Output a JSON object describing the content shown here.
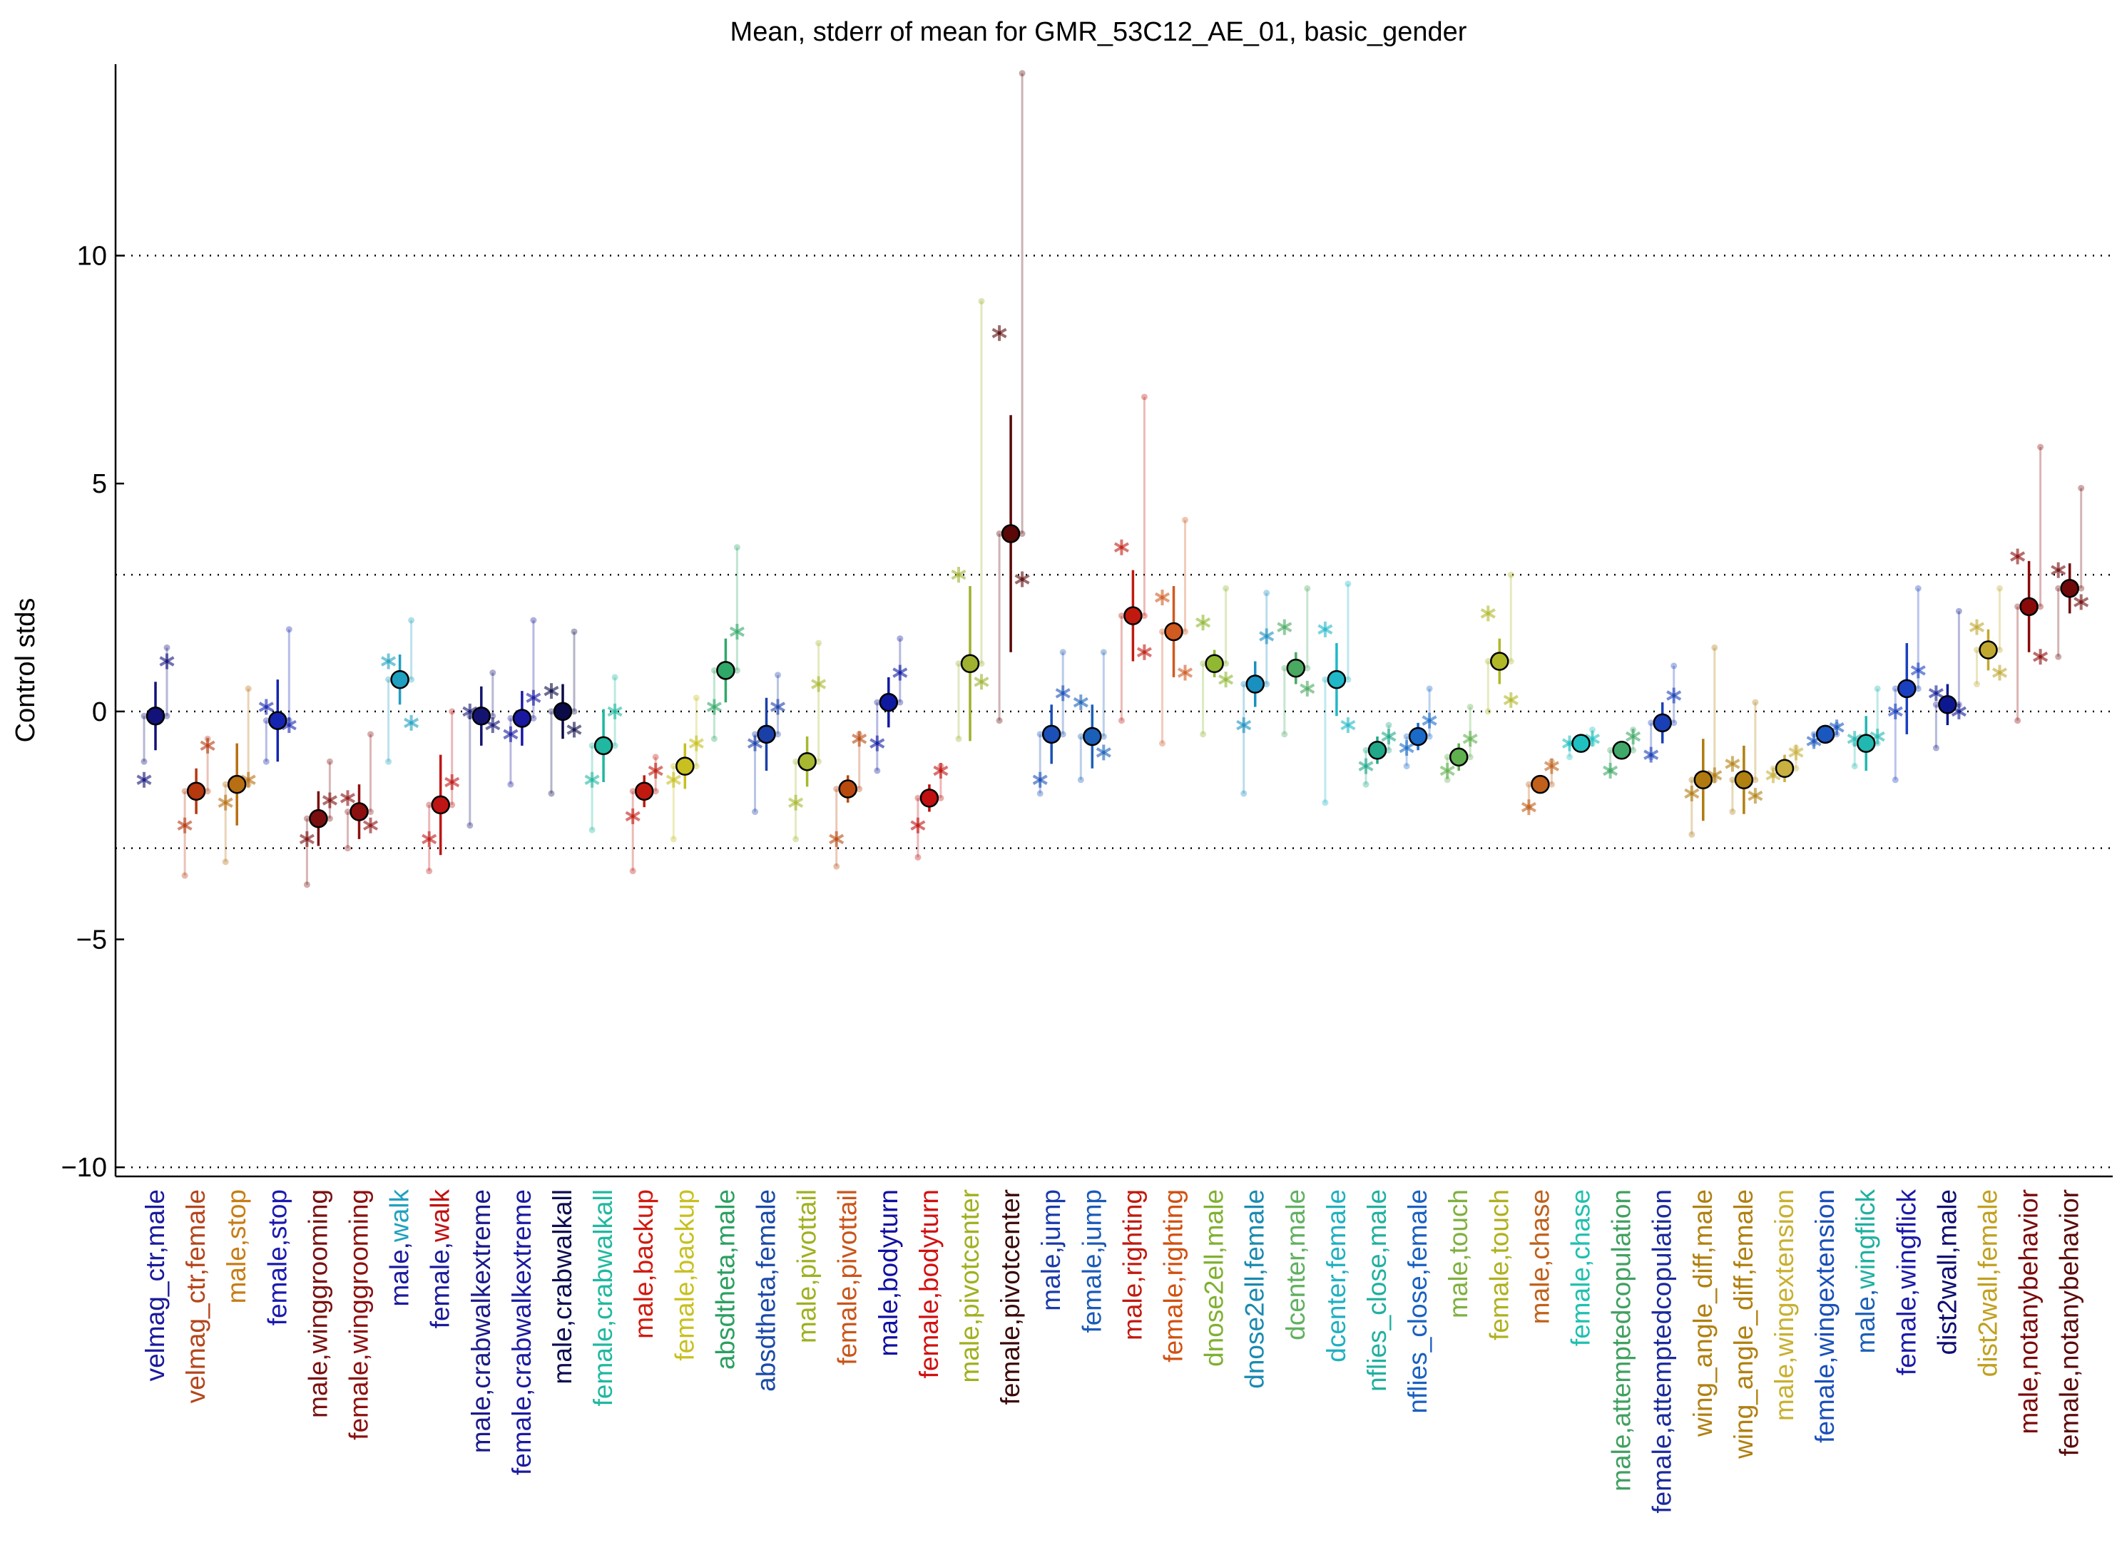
{
  "chart_data": {
    "type": "scatter",
    "title": "Mean, stderr of mean for GMR_53C12_AE_01, basic_gender",
    "ylabel": "Control stds",
    "xlabel": "",
    "ylim": [
      -10.2,
      14.2
    ],
    "yticks": [
      10,
      5,
      0,
      -5,
      -10
    ],
    "ytick_labels": [
      "10",
      "5",
      "0",
      "−5",
      "−10"
    ],
    "reference_lines": [
      10,
      3,
      0,
      -3,
      -10
    ],
    "grid": false,
    "categories": [
      {
        "label": "velmag_ctr,male",
        "parts": [
          "velmag_ctr,",
          "male"
        ],
        "colors": [
          "#1a1a9c",
          "#1a1a9c"
        ],
        "mean": -0.1,
        "err": 0.75,
        "marker": "#12127a",
        "s1": -1.5,
        "s2": 1.1,
        "whisker": [
          -1.1,
          1.4
        ]
      },
      {
        "label": "velmag_ctr,female",
        "parts": [
          "velmag_ctr,",
          "female"
        ],
        "colors": [
          "#b5451c",
          "#b5451c"
        ],
        "mean": -1.75,
        "err": 0.5,
        "marker": "#b5380f",
        "s1": -2.5,
        "s2": -0.75,
        "whisker": [
          -3.6,
          -0.6
        ]
      },
      {
        "label": "male,stop",
        "parts": [
          "male,",
          "stop"
        ],
        "colors": [
          "#c77d16",
          "#c77d16"
        ],
        "mean": -1.6,
        "err": 0.9,
        "marker": "#b86e12",
        "s1": -2.0,
        "s2": -1.5,
        "whisker": [
          -3.3,
          0.5
        ]
      },
      {
        "label": "female,stop",
        "parts": [
          "female,",
          "stop"
        ],
        "colors": [
          "#1a1ab0",
          "#1a1ab0"
        ],
        "mean": -0.2,
        "err": 0.9,
        "marker": "#1525b0",
        "s1": 0.1,
        "s2": -0.3,
        "whisker": [
          -1.1,
          1.8
        ]
      },
      {
        "label": "male,winggrooming",
        "parts": [
          "male,",
          "winggrooming"
        ],
        "colors": [
          "#7a1010",
          "#7a1010"
        ],
        "mean": -2.35,
        "err": 0.6,
        "marker": "#7a0f0f",
        "s1": -2.8,
        "s2": -1.95,
        "whisker": [
          -3.8,
          -1.1
        ]
      },
      {
        "label": "female,winggrooming",
        "parts": [
          "female,",
          "winggrooming"
        ],
        "colors": [
          "#8c1010",
          "#8c1010"
        ],
        "mean": -2.2,
        "err": 0.6,
        "marker": "#8c1010",
        "s1": -1.9,
        "s2": -2.5,
        "whisker": [
          -3.0,
          -0.5
        ]
      },
      {
        "label": "male,walk",
        "parts": [
          "male,",
          "walk"
        ],
        "colors": [
          "#1a1a9c",
          "#21a0c0"
        ],
        "mean": 0.7,
        "err": 0.55,
        "marker": "#1fa0c0",
        "s1": 1.1,
        "s2": -0.25,
        "whisker": [
          -1.1,
          2.0
        ]
      },
      {
        "label": "female,walk",
        "parts": [
          "female,",
          "walk"
        ],
        "colors": [
          "#1a1a9c",
          "#c01010"
        ],
        "mean": -2.05,
        "err": 1.1,
        "marker": "#c01515",
        "s1": -2.8,
        "s2": -1.55,
        "whisker": [
          -3.5,
          0.0
        ]
      },
      {
        "label": "male,crabwalkextreme",
        "parts": [
          "male,",
          "crabwalkextreme"
        ],
        "colors": [
          "#1a1a8a",
          "#1a1a8a"
        ],
        "mean": -0.1,
        "err": 0.65,
        "marker": "#141470",
        "s1": 0.0,
        "s2": -0.3,
        "whisker": [
          -2.5,
          0.85
        ]
      },
      {
        "label": "female,crabwalkextreme",
        "parts": [
          "female,",
          "crabwalkextreme"
        ],
        "colors": [
          "#1a1aa0",
          "#1a1aa0"
        ],
        "mean": -0.15,
        "err": 0.6,
        "marker": "#1818a0",
        "s1": -0.5,
        "s2": 0.3,
        "whisker": [
          -1.6,
          2.0
        ]
      },
      {
        "label": "male,crabwalkall",
        "parts": [
          "male,",
          "crabwalkall"
        ],
        "colors": [
          "#0d0d50",
          "#0d0d50"
        ],
        "mean": 0.0,
        "err": 0.6,
        "marker": "#0b0b48",
        "s1": 0.45,
        "s2": -0.4,
        "whisker": [
          -1.8,
          1.75
        ]
      },
      {
        "label": "female,crabwalkall",
        "parts": [
          "female,",
          "crabwalkall"
        ],
        "colors": [
          "#20b8a0",
          "#20b8a0"
        ],
        "mean": -0.75,
        "err": 0.8,
        "marker": "#20b8a0",
        "s1": -1.5,
        "s2": 0.0,
        "whisker": [
          -2.6,
          0.75
        ]
      },
      {
        "label": "male,backup",
        "parts": [
          "male,",
          "backup"
        ],
        "colors": [
          "#d01a10",
          "#d01a10"
        ],
        "mean": -1.75,
        "err": 0.35,
        "marker": "#c01a10",
        "s1": -2.3,
        "s2": -1.3,
        "whisker": [
          -3.5,
          -1.0
        ]
      },
      {
        "label": "female,backup",
        "parts": [
          "female,",
          "backup"
        ],
        "colors": [
          "#c8c020",
          "#c8c020"
        ],
        "mean": -1.2,
        "err": 0.5,
        "marker": "#c8c020",
        "s1": -1.5,
        "s2": -0.7,
        "whisker": [
          -2.8,
          0.3
        ]
      },
      {
        "label": "absdtheta,male",
        "parts": [
          "absdtheta,",
          "male"
        ],
        "colors": [
          "#2aa060",
          "#2aa060"
        ],
        "mean": 0.9,
        "err": 0.7,
        "marker": "#30a868",
        "s1": 0.1,
        "s2": 1.75,
        "whisker": [
          -0.6,
          3.6
        ]
      },
      {
        "label": "absdtheta,female",
        "parts": [
          "absdtheta,",
          "female"
        ],
        "colors": [
          "#1a4aa8",
          "#1a4aa8"
        ],
        "mean": -0.5,
        "err": 0.8,
        "marker": "#1a40a8",
        "s1": -0.7,
        "s2": 0.1,
        "whisker": [
          -2.2,
          0.8
        ]
      },
      {
        "label": "male,pivottail",
        "parts": [
          "male,",
          "pivottail"
        ],
        "colors": [
          "#a0b020",
          "#a0b020"
        ],
        "mean": -1.1,
        "err": 0.55,
        "marker": "#a8b830",
        "s1": -2.0,
        "s2": 0.6,
        "whisker": [
          -2.8,
          1.5
        ]
      },
      {
        "label": "female,pivottail",
        "parts": [
          "female,",
          "pivottail"
        ],
        "colors": [
          "#c8551a",
          "#c8551a"
        ],
        "mean": -1.7,
        "err": 0.3,
        "marker": "#b84a0f",
        "s1": -2.8,
        "s2": -0.6,
        "whisker": [
          -3.4,
          -0.5
        ]
      },
      {
        "label": "male,bodyturn",
        "parts": [
          "male,",
          "bodyturn"
        ],
        "colors": [
          "#1010a0",
          "#1010a0"
        ],
        "mean": 0.2,
        "err": 0.55,
        "marker": "#0f1aa0",
        "s1": -0.7,
        "s2": 0.85,
        "whisker": [
          -1.3,
          1.6
        ]
      },
      {
        "label": "female,bodyturn",
        "parts": [
          "female,",
          "bodyturn"
        ],
        "colors": [
          "#d01010",
          "#d01010"
        ],
        "mean": -1.9,
        "err": 0.3,
        "marker": "#c01010",
        "s1": -2.5,
        "s2": -1.3,
        "whisker": [
          -3.2,
          -1.2
        ]
      },
      {
        "label": "male,pivotcenter",
        "parts": [
          "male,",
          "pivotcenter"
        ],
        "colors": [
          "#a0b020",
          "#a0b020"
        ],
        "mean": 1.05,
        "err": 1.7,
        "marker": "#a0b030",
        "s1": 3.0,
        "s2": 0.65,
        "whisker": [
          -0.6,
          9.0
        ]
      },
      {
        "label": "female,pivotcenter",
        "parts": [
          "female,",
          "pivotcenter"
        ],
        "colors": [
          "#3a0808",
          "#3a0808"
        ],
        "mean": 3.9,
        "err": 2.6,
        "marker": "#5a0808",
        "s1": 8.3,
        "s2": 2.9,
        "whisker": [
          -0.2,
          14.0
        ]
      },
      {
        "label": "male,jump",
        "parts": [
          "male,",
          "jump"
        ],
        "colors": [
          "#1a3aa8",
          "#1a3aa8"
        ],
        "mean": -0.5,
        "err": 0.65,
        "marker": "#1a50b8",
        "s1": -1.5,
        "s2": 0.4,
        "whisker": [
          -1.8,
          1.3
        ]
      },
      {
        "label": "female,jump",
        "parts": [
          "female,",
          "jump"
        ],
        "colors": [
          "#1a5ab8",
          "#1a5ab8"
        ],
        "mean": -0.55,
        "err": 0.7,
        "marker": "#1a60b8",
        "s1": 0.2,
        "s2": -0.9,
        "whisker": [
          -1.5,
          1.3
        ]
      },
      {
        "label": "male,righting",
        "parts": [
          "male,",
          "righting"
        ],
        "colors": [
          "#c01a10",
          "#c01a10"
        ],
        "mean": 2.1,
        "err": 1.0,
        "marker": "#c01a10",
        "s1": 3.6,
        "s2": 1.3,
        "whisker": [
          -0.2,
          6.9
        ]
      },
      {
        "label": "female,righting",
        "parts": [
          "female,",
          "righting"
        ],
        "colors": [
          "#d05010",
          "#d05010"
        ],
        "mean": 1.75,
        "err": 1.0,
        "marker": "#d05a20",
        "s1": 2.5,
        "s2": 0.85,
        "whisker": [
          -0.7,
          4.2
        ]
      },
      {
        "label": "dnose2ell,male",
        "parts": [
          "dnose2ell,",
          "male"
        ],
        "colors": [
          "#80b030",
          "#80b030"
        ],
        "mean": 1.05,
        "err": 0.3,
        "marker": "#90b830",
        "s1": 1.95,
        "s2": 0.7,
        "whisker": [
          -0.5,
          2.7
        ]
      },
      {
        "label": "dnose2ell,female",
        "parts": [
          "dnose2ell,",
          "female"
        ],
        "colors": [
          "#1a8ab0",
          "#1a8ab0"
        ],
        "mean": 0.6,
        "err": 0.5,
        "marker": "#1a90c0",
        "s1": -0.3,
        "s2": 1.65,
        "whisker": [
          -1.8,
          2.6
        ]
      },
      {
        "label": "dcenter,male",
        "parts": [
          "dcenter,",
          "male"
        ],
        "colors": [
          "#60b060",
          "#60b060"
        ],
        "mean": 0.95,
        "err": 0.35,
        "marker": "#4aa860",
        "s1": 1.85,
        "s2": 0.5,
        "whisker": [
          -0.5,
          2.7
        ]
      },
      {
        "label": "dcenter,female",
        "parts": [
          "dcenter,",
          "female"
        ],
        "colors": [
          "#20b0c0",
          "#20b0c0"
        ],
        "mean": 0.7,
        "err": 0.8,
        "marker": "#20b8c8",
        "s1": 1.8,
        "s2": -0.3,
        "whisker": [
          -2.0,
          2.8
        ]
      },
      {
        "label": "nflies_close,male",
        "parts": [
          "nflies_close,",
          "male"
        ],
        "colors": [
          "#20b0a0",
          "#20b0a0"
        ],
        "mean": -0.85,
        "err": 0.3,
        "marker": "#20a888",
        "s1": -1.2,
        "s2": -0.55,
        "whisker": [
          -1.6,
          -0.3
        ]
      },
      {
        "label": "nflies_close,female",
        "parts": [
          "nflies_close,",
          "female"
        ],
        "colors": [
          "#1a60c0",
          "#1a60c0"
        ],
        "mean": -0.55,
        "err": 0.3,
        "marker": "#1a6ac8",
        "s1": -0.8,
        "s2": -0.2,
        "whisker": [
          -1.2,
          0.5
        ]
      },
      {
        "label": "male,touch",
        "parts": [
          "male,",
          "touch"
        ],
        "colors": [
          "#80b040",
          "#80b040"
        ],
        "mean": -1.0,
        "err": 0.3,
        "marker": "#60b050",
        "s1": -1.3,
        "s2": -0.6,
        "whisker": [
          -1.5,
          0.1
        ]
      },
      {
        "label": "female,touch",
        "parts": [
          "female,",
          "touch"
        ],
        "colors": [
          "#b0b020",
          "#b0b020"
        ],
        "mean": 1.1,
        "err": 0.5,
        "marker": "#b0b828",
        "s1": 2.15,
        "s2": 0.25,
        "whisker": [
          0.0,
          3.0
        ]
      },
      {
        "label": "male,chase",
        "parts": [
          "male,",
          "chase"
        ],
        "colors": [
          "#c0601a",
          "#c0601a"
        ],
        "mean": -1.6,
        "err": 0.2,
        "marker": "#c0601a",
        "s1": -2.1,
        "s2": -1.2,
        "whisker": [
          -2.1,
          -1.1
        ]
      },
      {
        "label": "female,chase",
        "parts": [
          "female,",
          "chase"
        ],
        "colors": [
          "#20c0b0",
          "#20c0b0"
        ],
        "mean": -0.7,
        "err": 0.15,
        "marker": "#20c0c0",
        "s1": -0.7,
        "s2": -0.6,
        "whisker": [
          -1.0,
          -0.4
        ]
      },
      {
        "label": "male,attemptedcopulation",
        "parts": [
          "male,",
          "attemptedcopulation"
        ],
        "colors": [
          "#40a060",
          "#40a060"
        ],
        "mean": -0.85,
        "err": 0.2,
        "marker": "#40a868",
        "s1": -1.3,
        "s2": -0.55,
        "whisker": [
          -1.3,
          -0.4
        ]
      },
      {
        "label": "female,attemptedcopulation",
        "parts": [
          "female,",
          "attemptedcopulation"
        ],
        "colors": [
          "#1a2a9c",
          "#1a2a9c"
        ],
        "mean": -0.25,
        "err": 0.45,
        "marker": "#1a40b8",
        "s1": -0.95,
        "s2": 0.35,
        "whisker": [
          -1.0,
          1.0
        ]
      },
      {
        "label": "wing_angle_diff,male",
        "parts": [
          "wing_angle_diff,",
          "male"
        ],
        "colors": [
          "#b08010",
          "#b08010"
        ],
        "mean": -1.5,
        "err": 0.9,
        "marker": "#b07a10",
        "s1": -1.8,
        "s2": -1.4,
        "whisker": [
          -2.7,
          1.4
        ]
      },
      {
        "label": "wing_angle_diff,female",
        "parts": [
          "wing_angle_diff,",
          "female"
        ],
        "colors": [
          "#b08010",
          "#b08010"
        ],
        "mean": -1.5,
        "err": 0.75,
        "marker": "#b08010",
        "s1": -1.15,
        "s2": -1.85,
        "whisker": [
          -2.2,
          0.2
        ]
      },
      {
        "label": "male,wingextension",
        "parts": [
          "male,",
          "wingextension"
        ],
        "colors": [
          "#c8b030",
          "#c8b030"
        ],
        "mean": -1.25,
        "err": 0.3,
        "marker": "#c8b040",
        "s1": -1.4,
        "s2": -0.9,
        "whisker": [
          -1.4,
          -0.8
        ]
      },
      {
        "label": "female,wingextension",
        "parts": [
          "female,",
          "wingextension"
        ],
        "colors": [
          "#1a50b8",
          "#1a50b8"
        ],
        "mean": -0.5,
        "err": 0.15,
        "marker": "#1a58c0",
        "s1": -0.65,
        "s2": -0.35,
        "whisker": [
          -0.7,
          -0.3
        ]
      },
      {
        "label": "male,wingflick",
        "parts": [
          "male,",
          "wingflick"
        ],
        "colors": [
          "#1a60b8",
          "#20b0a0"
        ],
        "mean": -0.7,
        "err": 0.6,
        "marker": "#20b8b0",
        "s1": -0.6,
        "s2": -0.55,
        "whisker": [
          -1.2,
          0.5
        ]
      },
      {
        "label": "female,wingflick",
        "parts": [
          "female,",
          "wingflick"
        ],
        "colors": [
          "#1a1aa8",
          "#1a1aa8"
        ],
        "mean": 0.5,
        "err": 1.0,
        "marker": "#1a40c0",
        "s1": 0.0,
        "s2": 0.9,
        "whisker": [
          -1.5,
          2.7
        ]
      },
      {
        "label": "dist2wall,male",
        "parts": [
          "dist2wall,",
          "male"
        ],
        "colors": [
          "#0d0d70",
          "#0d0d70"
        ],
        "mean": 0.15,
        "err": 0.45,
        "marker": "#0d1890",
        "s1": 0.4,
        "s2": 0.0,
        "whisker": [
          -0.8,
          2.2
        ]
      },
      {
        "label": "dist2wall,female",
        "parts": [
          "dist2wall,",
          "female"
        ],
        "colors": [
          "#c0a020",
          "#c0a020"
        ],
        "mean": 1.35,
        "err": 0.45,
        "marker": "#c0a830",
        "s1": 1.85,
        "s2": 0.85,
        "whisker": [
          0.6,
          2.7
        ]
      },
      {
        "label": "male,notanybehavior",
        "parts": [
          "male,",
          "notanybehavior"
        ],
        "colors": [
          "#7a0a0a",
          "#7a0a0a"
        ],
        "mean": 2.3,
        "err": 1.0,
        "marker": "#8a0a0a",
        "s1": 3.4,
        "s2": 1.2,
        "whisker": [
          -0.2,
          5.8
        ]
      },
      {
        "label": "female,notanybehavior",
        "parts": [
          "female,",
          "notanybehavior"
        ],
        "colors": [
          "#5a0a0a",
          "#5a0a0a"
        ],
        "mean": 2.7,
        "err": 0.55,
        "marker": "#700a0a",
        "s1": 3.1,
        "s2": 2.4,
        "whisker": [
          1.2,
          4.9
        ]
      }
    ]
  }
}
